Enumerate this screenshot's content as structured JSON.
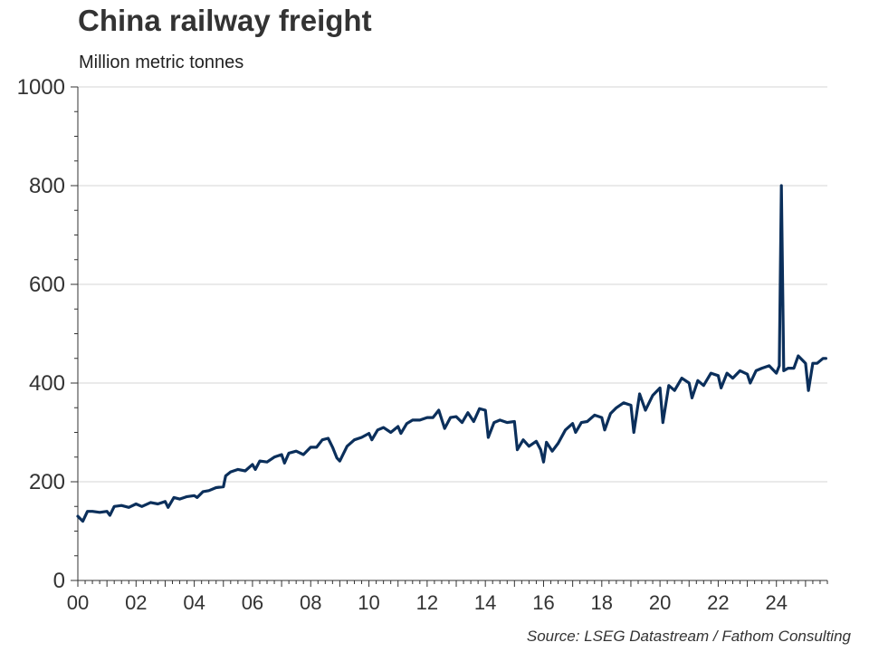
{
  "chart_data": {
    "type": "line",
    "title": "China railway freight",
    "subtitle": "Million metric tonnes",
    "source": "Source: LSEG Datastream / Fathom Consulting",
    "xlabel": "",
    "ylabel": "",
    "xlim": [
      2000,
      2025.75
    ],
    "ylim": [
      0,
      1000
    ],
    "yticks": [
      0,
      200,
      400,
      600,
      800,
      1000
    ],
    "xticks": [
      2000,
      2002,
      2004,
      2006,
      2008,
      2010,
      2012,
      2014,
      2016,
      2018,
      2020,
      2022,
      2024
    ],
    "xtick_labels": [
      "00",
      "02",
      "04",
      "06",
      "08",
      "10",
      "12",
      "14",
      "16",
      "18",
      "20",
      "22",
      "24"
    ],
    "grid": "horizontal",
    "legend": "none",
    "line_color": "#0b2f5b",
    "series": [
      {
        "x": [
          2000.0,
          2000.17,
          2000.33,
          2000.5,
          2000.75,
          2001.0,
          2001.1,
          2001.25,
          2001.5,
          2001.75,
          2002.0,
          2002.2,
          2002.5,
          2002.75,
          2003.0,
          2003.1,
          2003.3,
          2003.5,
          2003.75,
          2004.0,
          2004.1,
          2004.3,
          2004.5,
          2004.75,
          2005.0,
          2005.08,
          2005.25,
          2005.5,
          2005.75,
          2006.0,
          2006.1,
          2006.25,
          2006.5,
          2006.75,
          2007.0,
          2007.1,
          2007.25,
          2007.5,
          2007.75,
          2008.0,
          2008.2,
          2008.4,
          2008.6,
          2008.75,
          2008.9,
          2009.0,
          2009.25,
          2009.5,
          2009.75,
          2010.0,
          2010.1,
          2010.3,
          2010.5,
          2010.75,
          2011.0,
          2011.1,
          2011.3,
          2011.5,
          2011.75,
          2012.0,
          2012.2,
          2012.4,
          2012.6,
          2012.8,
          2013.0,
          2013.2,
          2013.4,
          2013.6,
          2013.8,
          2014.0,
          2014.1,
          2014.3,
          2014.5,
          2014.75,
          2015.0,
          2015.1,
          2015.3,
          2015.5,
          2015.75,
          2015.9,
          2016.0,
          2016.1,
          2016.3,
          2016.5,
          2016.75,
          2017.0,
          2017.1,
          2017.3,
          2017.5,
          2017.75,
          2018.0,
          2018.1,
          2018.3,
          2018.5,
          2018.75,
          2019.0,
          2019.1,
          2019.3,
          2019.5,
          2019.75,
          2020.0,
          2020.1,
          2020.3,
          2020.5,
          2020.75,
          2021.0,
          2021.1,
          2021.3,
          2021.5,
          2021.75,
          2022.0,
          2022.1,
          2022.3,
          2022.5,
          2022.75,
          2023.0,
          2023.1,
          2023.3,
          2023.5,
          2023.75,
          2024.0,
          2024.1,
          2024.17,
          2024.25,
          2024.4,
          2024.6,
          2024.75,
          2025.0,
          2025.1,
          2025.25,
          2025.4,
          2025.6,
          2025.7
        ],
        "values": [
          130,
          120,
          140,
          140,
          138,
          140,
          132,
          150,
          152,
          148,
          155,
          150,
          158,
          155,
          160,
          148,
          168,
          165,
          170,
          172,
          168,
          180,
          182,
          188,
          190,
          212,
          220,
          225,
          222,
          235,
          225,
          242,
          240,
          250,
          255,
          238,
          258,
          262,
          255,
          270,
          270,
          285,
          288,
          270,
          248,
          242,
          272,
          285,
          290,
          298,
          285,
          305,
          310,
          300,
          312,
          298,
          318,
          325,
          325,
          330,
          330,
          345,
          308,
          330,
          332,
          320,
          340,
          322,
          348,
          345,
          290,
          320,
          325,
          320,
          322,
          265,
          285,
          272,
          282,
          265,
          240,
          280,
          262,
          278,
          305,
          318,
          300,
          320,
          322,
          335,
          330,
          305,
          338,
          350,
          360,
          355,
          300,
          378,
          345,
          375,
          390,
          320,
          395,
          385,
          410,
          400,
          370,
          405,
          395,
          420,
          415,
          390,
          420,
          410,
          425,
          418,
          400,
          425,
          430,
          435,
          420,
          435,
          800,
          425,
          430,
          430,
          455,
          440,
          385,
          440,
          440,
          450,
          450
        ]
      }
    ]
  }
}
